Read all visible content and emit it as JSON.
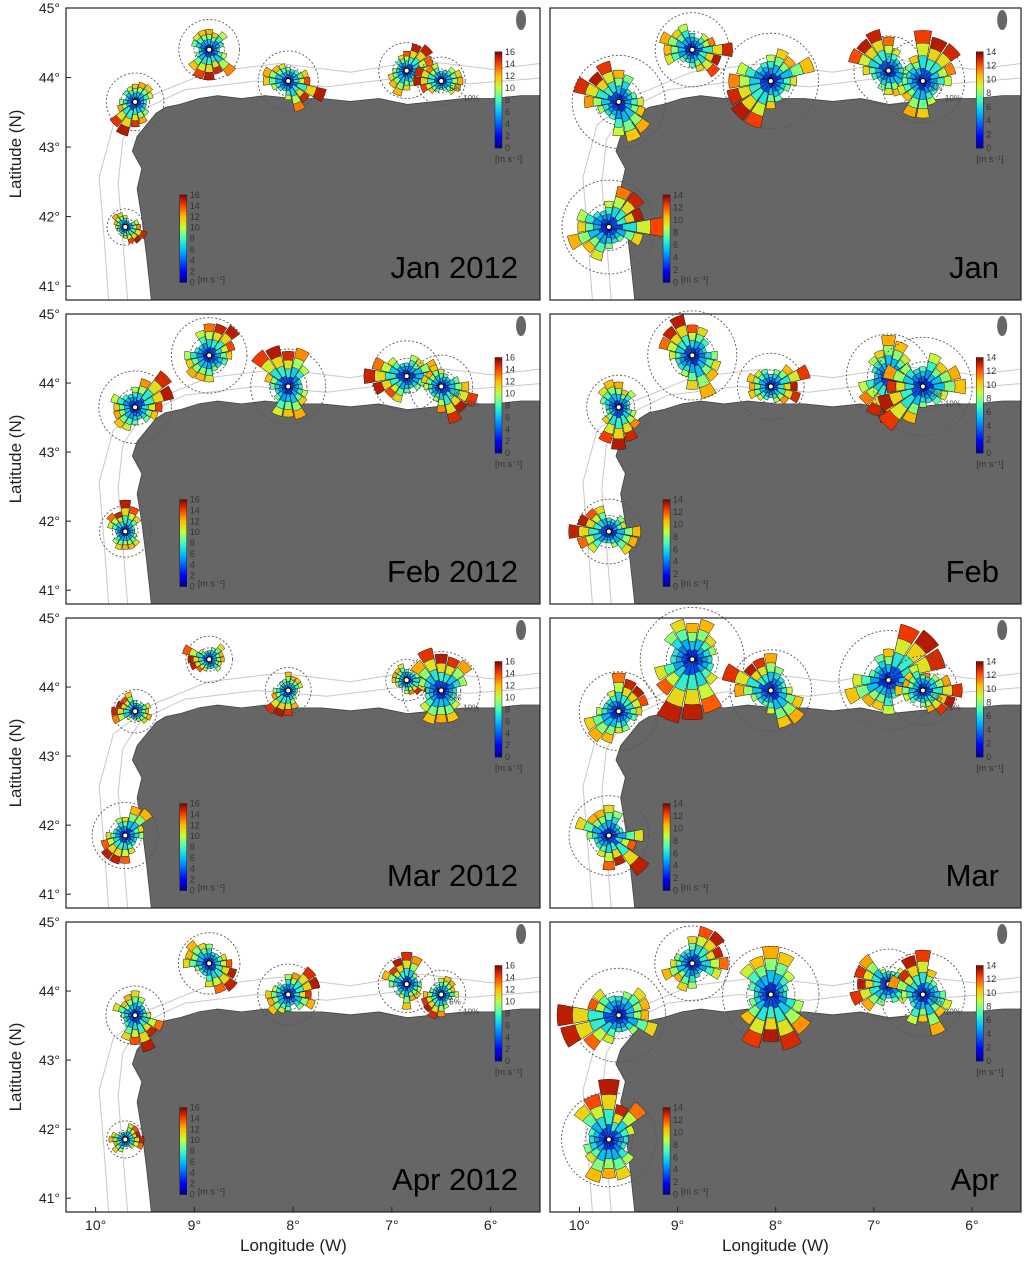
{
  "figure": {
    "xlabel": "Longitude (W)",
    "ylabel": "Latitude (N)",
    "lat_ticks": [
      "45°",
      "44°",
      "43°",
      "42°",
      "41°"
    ],
    "lon_ticks": [
      "10°",
      "9°",
      "8°",
      "7°",
      "6°"
    ],
    "colorbar_unit": "[m s⁻¹]",
    "colorbar_ticks_left": [
      "16",
      "14",
      "12",
      "10",
      "8",
      "6",
      "4",
      "2",
      "0"
    ],
    "colorbar_ticks_right": [
      "14",
      "12",
      "10",
      "8",
      "6",
      "4",
      "2",
      "0"
    ],
    "pct_labels": [
      "5%",
      "10%"
    ],
    "colors": {
      "land": "#666666",
      "sea": "#ffffff",
      "isobath": "#c8c8c8",
      "circle": "#555555",
      "border": "#222222"
    }
  },
  "panels": [
    {
      "label": "Jan 2012",
      "col": 0,
      "row": 0
    },
    {
      "label": "Jan",
      "col": 1,
      "row": 0
    },
    {
      "label": "Feb 2012",
      "col": 0,
      "row": 1
    },
    {
      "label": "Feb",
      "col": 1,
      "row": 1
    },
    {
      "label": "Mar 2012",
      "col": 0,
      "row": 2
    },
    {
      "label": "Mar",
      "col": 1,
      "row": 2
    },
    {
      "label": "Apr 2012",
      "col": 0,
      "row": 3
    },
    {
      "label": "Apr",
      "col": 1,
      "row": 3
    }
  ],
  "chart_data": {
    "type": "map",
    "extent": {
      "lon_w": [
        10.3,
        5.5
      ],
      "lat_n": [
        40.8,
        45.0
      ]
    },
    "wind_rose_sites": [
      {
        "lon_w": 9.6,
        "lat_n": 43.65
      },
      {
        "lon_w": 8.85,
        "lat_n": 44.4
      },
      {
        "lon_w": 8.05,
        "lat_n": 43.95
      },
      {
        "lon_w": 6.85,
        "lat_n": 44.1
      },
      {
        "lon_w": 6.5,
        "lat_n": 43.95
      },
      {
        "lon_w": 9.7,
        "lat_n": 41.85
      }
    ],
    "speed_range_m_s": [
      0,
      16
    ]
  }
}
